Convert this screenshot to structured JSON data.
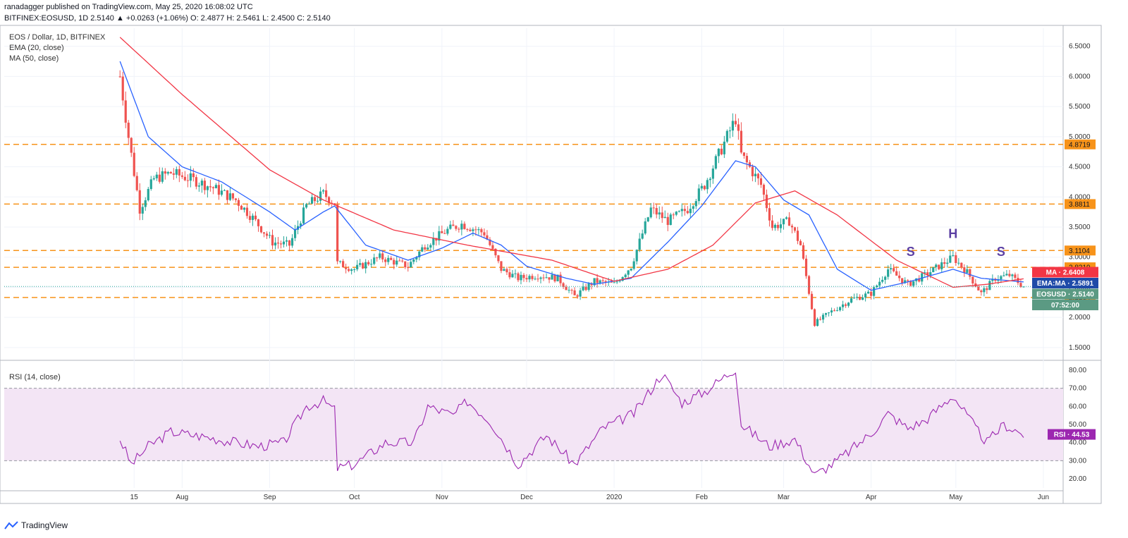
{
  "header": {
    "line1": "ranadagger published on TradingView.com, May 25, 2020 16:08:02 UTC",
    "line2": "BITFINEX:EOSUSD, 1D  2.5140  ▲ +0.0263 (+1.06%)  O: 2.4877  H: 2.5461  L: 2.4500  C: 2.5140"
  },
  "legend": {
    "symbol": "EOS / Dollar, 1D, BITFINEX",
    "ema": "EMA (20, close)",
    "ma": "MA (50, close)"
  },
  "rsi_title": "RSI (14, close)",
  "footer": {
    "brand": "TradingView"
  },
  "colors": {
    "up": "#26a69a",
    "down": "#ef5350",
    "ema": "#2962ff",
    "ma": "#f23645",
    "level": "#f7931a",
    "rsi": "#9c27b0",
    "rsi_band": "#f3e5f5"
  },
  "chart_data": [
    {
      "type": "candlestick",
      "title": "EOS / Dollar, 1D, BITFINEX",
      "x_ticks": [
        "15",
        "Aug",
        "Sep",
        "Oct",
        "Nov",
        "Dec",
        "2020",
        "Feb",
        "Mar",
        "Apr",
        "May",
        "Jun"
      ],
      "y_ticks": [
        "1.5000",
        "2.0000",
        "2.5000",
        "3.0000",
        "3.5000",
        "4.0000",
        "4.5000",
        "5.0000",
        "5.5000",
        "6.0000",
        "6.5000"
      ],
      "ylim": [
        1.3,
        6.8
      ],
      "date_range": [
        "2019-07-10",
        "2020-05-25"
      ],
      "close_path": [
        [
          "2019-07-10",
          6.0
        ],
        [
          "2019-07-13",
          5.0
        ],
        [
          "2019-07-17",
          3.8
        ],
        [
          "2019-07-22",
          4.3
        ],
        [
          "2019-07-28",
          4.4
        ],
        [
          "2019-08-04",
          4.3
        ],
        [
          "2019-08-12",
          4.15
        ],
        [
          "2019-08-20",
          3.95
        ],
        [
          "2019-08-26",
          3.65
        ],
        [
          "2019-09-02",
          3.25
        ],
        [
          "2019-09-08",
          3.2
        ],
        [
          "2019-09-14",
          3.85
        ],
        [
          "2019-09-20",
          4.05
        ],
        [
          "2019-09-24",
          3.9
        ],
        [
          "2019-09-25",
          2.9
        ],
        [
          "2019-10-01",
          2.8
        ],
        [
          "2019-10-10",
          3.0
        ],
        [
          "2019-10-20",
          2.85
        ],
        [
          "2019-10-26",
          3.2
        ],
        [
          "2019-11-03",
          3.45
        ],
        [
          "2019-11-08",
          3.55
        ],
        [
          "2019-11-16",
          3.4
        ],
        [
          "2019-11-22",
          2.8
        ],
        [
          "2019-11-28",
          2.65
        ],
        [
          "2019-12-05",
          2.7
        ],
        [
          "2019-12-12",
          2.65
        ],
        [
          "2019-12-18",
          2.35
        ],
        [
          "2019-12-25",
          2.6
        ],
        [
          "2020-01-01",
          2.55
        ],
        [
          "2020-01-07",
          2.85
        ],
        [
          "2020-01-14",
          3.8
        ],
        [
          "2020-01-20",
          3.6
        ],
        [
          "2020-01-27",
          3.8
        ],
        [
          "2020-02-02",
          4.2
        ],
        [
          "2020-02-08",
          4.8
        ],
        [
          "2020-02-13",
          5.3
        ],
        [
          "2020-02-15",
          4.7
        ],
        [
          "2020-02-22",
          4.2
        ],
        [
          "2020-02-26",
          3.5
        ],
        [
          "2020-03-03",
          3.6
        ],
        [
          "2020-03-07",
          3.2
        ],
        [
          "2020-03-12",
          1.9
        ],
        [
          "2020-03-18",
          2.1
        ],
        [
          "2020-03-25",
          2.3
        ],
        [
          "2020-04-01",
          2.4
        ],
        [
          "2020-04-07",
          2.8
        ],
        [
          "2020-04-14",
          2.55
        ],
        [
          "2020-04-20",
          2.7
        ],
        [
          "2020-04-30",
          3.0
        ],
        [
          "2020-05-05",
          2.75
        ],
        [
          "2020-05-10",
          2.4
        ],
        [
          "2020-05-15",
          2.65
        ],
        [
          "2020-05-20",
          2.7
        ],
        [
          "2020-05-25",
          2.514
        ]
      ],
      "ema20_path": [
        [
          "2019-07-10",
          6.25
        ],
        [
          "2019-07-20",
          5.0
        ],
        [
          "2019-08-01",
          4.5
        ],
        [
          "2019-08-15",
          4.25
        ],
        [
          "2019-09-01",
          3.75
        ],
        [
          "2019-09-10",
          3.45
        ],
        [
          "2019-09-20",
          3.75
        ],
        [
          "2019-09-24",
          3.85
        ],
        [
          "2019-10-05",
          3.2
        ],
        [
          "2019-10-20",
          2.95
        ],
        [
          "2019-11-01",
          3.15
        ],
        [
          "2019-11-12",
          3.4
        ],
        [
          "2019-11-22",
          3.2
        ],
        [
          "2019-12-01",
          2.85
        ],
        [
          "2019-12-15",
          2.65
        ],
        [
          "2019-12-25",
          2.55
        ],
        [
          "2020-01-07",
          2.65
        ],
        [
          "2020-01-20",
          3.25
        ],
        [
          "2020-02-01",
          3.85
        ],
        [
          "2020-02-13",
          4.6
        ],
        [
          "2020-02-20",
          4.5
        ],
        [
          "2020-03-01",
          3.95
        ],
        [
          "2020-03-10",
          3.7
        ],
        [
          "2020-03-20",
          2.8
        ],
        [
          "2020-04-01",
          2.45
        ],
        [
          "2020-04-15",
          2.6
        ],
        [
          "2020-04-30",
          2.8
        ],
        [
          "2020-05-10",
          2.65
        ],
        [
          "2020-05-25",
          2.5891
        ]
      ],
      "ma50_path": [
        [
          "2019-07-10",
          6.65
        ],
        [
          "2019-08-01",
          5.7
        ],
        [
          "2019-09-01",
          4.45
        ],
        [
          "2019-09-20",
          3.95
        ],
        [
          "2019-10-15",
          3.45
        ],
        [
          "2019-11-10",
          3.2
        ],
        [
          "2019-12-10",
          2.95
        ],
        [
          "2020-01-01",
          2.6
        ],
        [
          "2020-01-20",
          2.8
        ],
        [
          "2020-02-05",
          3.2
        ],
        [
          "2020-02-20",
          3.9
        ],
        [
          "2020-03-05",
          4.1
        ],
        [
          "2020-03-20",
          3.7
        ],
        [
          "2020-04-10",
          2.95
        ],
        [
          "2020-04-30",
          2.5
        ],
        [
          "2020-05-12",
          2.55
        ],
        [
          "2020-05-25",
          2.6408
        ]
      ],
      "levels": [
        {
          "label": "4.8719",
          "value": 4.8719
        },
        {
          "label": "3.8811",
          "value": 3.8811
        },
        {
          "label": "3.1104",
          "value": 3.1104
        },
        {
          "label": "2.8319",
          "value": 2.8319
        },
        {
          "label": "2.3314",
          "value": 2.3314
        }
      ],
      "annotations": [
        {
          "text": "S",
          "date": "2020-04-15",
          "value": 3.02
        },
        {
          "text": "H",
          "date": "2020-04-30",
          "value": 3.32
        },
        {
          "text": "S",
          "date": "2020-05-17",
          "value": 3.02
        }
      ],
      "price_badges": [
        {
          "text": "MA · 2.6408",
          "value": 2.6408,
          "color": "#f23645"
        },
        {
          "text": "EMA:MA · 2.5891",
          "value": 2.5891,
          "color": "#1e4aa8"
        },
        {
          "text": "EOSUSD · 2.5140",
          "value": 2.514,
          "color": "#5b9a83"
        },
        {
          "text": "07:52:00",
          "value": 2.44,
          "color": "#5b9a83"
        }
      ]
    },
    {
      "type": "line",
      "title": "RSI (14, close)",
      "y_ticks": [
        "20.00",
        "30.00",
        "40.00",
        "50.00",
        "60.00",
        "70.00",
        "80.00"
      ],
      "ylim": [
        15,
        85
      ],
      "band": [
        30,
        70
      ],
      "path": [
        [
          "2019-07-10",
          42
        ],
        [
          "2019-07-14",
          28
        ],
        [
          "2019-07-20",
          38
        ],
        [
          "2019-07-28",
          46
        ],
        [
          "2019-08-10",
          43
        ],
        [
          "2019-08-20",
          40
        ],
        [
          "2019-08-28",
          38
        ],
        [
          "2019-09-06",
          40
        ],
        [
          "2019-09-14",
          60
        ],
        [
          "2019-09-20",
          63
        ],
        [
          "2019-09-24",
          58
        ],
        [
          "2019-09-25",
          26
        ],
        [
          "2019-10-01",
          28
        ],
        [
          "2019-10-12",
          40
        ],
        [
          "2019-10-22",
          40
        ],
        [
          "2019-10-27",
          60
        ],
        [
          "2019-11-05",
          55
        ],
        [
          "2019-11-10",
          63
        ],
        [
          "2019-11-18",
          52
        ],
        [
          "2019-11-28",
          28
        ],
        [
          "2019-12-08",
          44
        ],
        [
          "2019-12-18",
          28
        ],
        [
          "2019-12-28",
          48
        ],
        [
          "2020-01-08",
          56
        ],
        [
          "2020-01-18",
          78
        ],
        [
          "2020-01-25",
          62
        ],
        [
          "2020-02-02",
          68
        ],
        [
          "2020-02-13",
          81
        ],
        [
          "2020-02-15",
          50
        ],
        [
          "2020-02-25",
          38
        ],
        [
          "2020-03-05",
          42
        ],
        [
          "2020-03-12",
          22
        ],
        [
          "2020-03-20",
          30
        ],
        [
          "2020-04-01",
          45
        ],
        [
          "2020-04-07",
          56
        ],
        [
          "2020-04-14",
          48
        ],
        [
          "2020-04-20",
          52
        ],
        [
          "2020-04-30",
          66
        ],
        [
          "2020-05-08",
          48
        ],
        [
          "2020-05-12",
          40
        ],
        [
          "2020-05-18",
          50
        ],
        [
          "2020-05-25",
          44.53
        ]
      ],
      "badge": {
        "text": "RSI · 44.53",
        "value": 44.53
      }
    }
  ]
}
